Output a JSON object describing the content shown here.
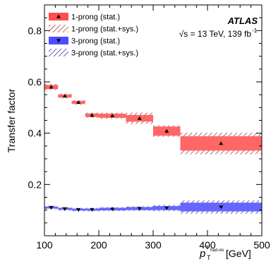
{
  "chart_data": {
    "type": "scatter",
    "xlabel": "p_T^{τ_had-vis} [GeV]",
    "xlabel_main": "p",
    "xlabel_sub": "T",
    "xlabel_sup": "τ",
    "xlabel_supsub": "had-vis",
    "xlabel_unit": "[GeV]",
    "ylabel": "Transfer factor",
    "xlim": [
      100,
      500
    ],
    "ylim": [
      0.0,
      0.9
    ],
    "xticks": [
      100,
      200,
      300,
      400,
      500
    ],
    "yticks": [
      0.2,
      0.4,
      0.6,
      0.8
    ],
    "xtick_labels": [
      "100",
      "200",
      "300",
      "400",
      "500"
    ],
    "ytick_labels": [
      "0.2",
      "0.4",
      "0.6",
      "0.8"
    ],
    "atlas_label": "ATLAS",
    "energy_label": "√s = 13 TeV, 139 fb",
    "energy_label_sup": "-1",
    "legend": [
      {
        "label": "1-prong (stat.)",
        "style": "solid",
        "color": "#ff4d4d"
      },
      {
        "label": "1-prong (stat.+sys.)",
        "style": "hatch",
        "color": "#8b0000"
      },
      {
        "label": "3-prong (stat.)",
        "style": "solid",
        "color": "#4d4dff"
      },
      {
        "label": "3-prong (stat.+sys.)",
        "style": "hatch",
        "color": "#00008b"
      }
    ],
    "series": [
      {
        "name": "1-prong",
        "marker": "triangle-up",
        "stat_color": "#ff6666",
        "sys_color": "#a01010",
        "bins": [
          {
            "lo": 100,
            "hi": 125,
            "y": 0.58,
            "stat": 0.008,
            "sys": 0.012
          },
          {
            "lo": 125,
            "hi": 150,
            "y": 0.545,
            "stat": 0.006,
            "sys": 0.009
          },
          {
            "lo": 150,
            "hi": 175,
            "y": 0.52,
            "stat": 0.006,
            "sys": 0.009
          },
          {
            "lo": 175,
            "hi": 200,
            "y": 0.47,
            "stat": 0.007,
            "sys": 0.01
          },
          {
            "lo": 200,
            "hi": 250,
            "y": 0.468,
            "stat": 0.008,
            "sys": 0.012
          },
          {
            "lo": 250,
            "hi": 300,
            "y": 0.458,
            "stat": 0.013,
            "sys": 0.022
          },
          {
            "lo": 300,
            "hi": 350,
            "y": 0.408,
            "stat": 0.018,
            "sys": 0.022
          },
          {
            "lo": 350,
            "hi": 500,
            "y": 0.36,
            "stat": 0.028,
            "sys": 0.042
          }
        ]
      },
      {
        "name": "3-prong",
        "marker": "triangle-down",
        "stat_color": "#6666ff",
        "sys_color": "#10108f",
        "bins": [
          {
            "lo": 100,
            "hi": 125,
            "y": 0.11,
            "stat": 0.004,
            "sys": 0.007
          },
          {
            "lo": 125,
            "hi": 150,
            "y": 0.105,
            "stat": 0.004,
            "sys": 0.007
          },
          {
            "lo": 150,
            "hi": 175,
            "y": 0.102,
            "stat": 0.004,
            "sys": 0.007
          },
          {
            "lo": 175,
            "hi": 200,
            "y": 0.102,
            "stat": 0.004,
            "sys": 0.007
          },
          {
            "lo": 200,
            "hi": 250,
            "y": 0.104,
            "stat": 0.005,
            "sys": 0.008
          },
          {
            "lo": 250,
            "hi": 300,
            "y": 0.106,
            "stat": 0.006,
            "sys": 0.009
          },
          {
            "lo": 300,
            "hi": 350,
            "y": 0.108,
            "stat": 0.008,
            "sys": 0.012
          },
          {
            "lo": 350,
            "hi": 500,
            "y": 0.112,
            "stat": 0.017,
            "sys": 0.026
          }
        ]
      }
    ]
  }
}
